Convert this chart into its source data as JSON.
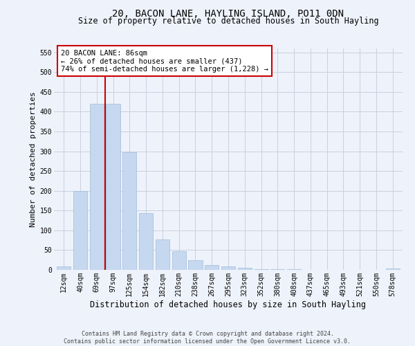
{
  "title": "20, BACON LANE, HAYLING ISLAND, PO11 0DN",
  "subtitle": "Size of property relative to detached houses in South Hayling",
  "xlabel": "Distribution of detached houses by size in South Hayling",
  "ylabel": "Number of detached properties",
  "footer": "Contains HM Land Registry data © Crown copyright and database right 2024.\nContains public sector information licensed under the Open Government Licence v3.0.",
  "categories": [
    "12sqm",
    "40sqm",
    "69sqm",
    "97sqm",
    "125sqm",
    "154sqm",
    "182sqm",
    "210sqm",
    "238sqm",
    "267sqm",
    "295sqm",
    "323sqm",
    "352sqm",
    "380sqm",
    "408sqm",
    "437sqm",
    "465sqm",
    "493sqm",
    "521sqm",
    "550sqm",
    "578sqm"
  ],
  "values": [
    8,
    200,
    420,
    420,
    298,
    143,
    77,
    48,
    24,
    12,
    8,
    5,
    2,
    1,
    1,
    0,
    0,
    0,
    0,
    0,
    3
  ],
  "bar_color": "#c5d8f0",
  "bar_edge_color": "#a0bcd8",
  "vline_x": 2.5,
  "vline_color": "#cc0000",
  "annotation_text": "20 BACON LANE: 86sqm\n← 26% of detached houses are smaller (437)\n74% of semi-detached houses are larger (1,228) →",
  "annotation_box_color": "#ffffff",
  "annotation_box_edge_color": "#cc0000",
  "ylim": [
    0,
    560
  ],
  "yticks": [
    0,
    50,
    100,
    150,
    200,
    250,
    300,
    350,
    400,
    450,
    500,
    550
  ],
  "grid_color": "#c8d0e0",
  "background_color": "#eef2fa",
  "title_fontsize": 10,
  "subtitle_fontsize": 8.5,
  "xlabel_fontsize": 8.5,
  "ylabel_fontsize": 8,
  "tick_fontsize": 7,
  "footer_fontsize": 6,
  "annotation_fontsize": 7.5
}
